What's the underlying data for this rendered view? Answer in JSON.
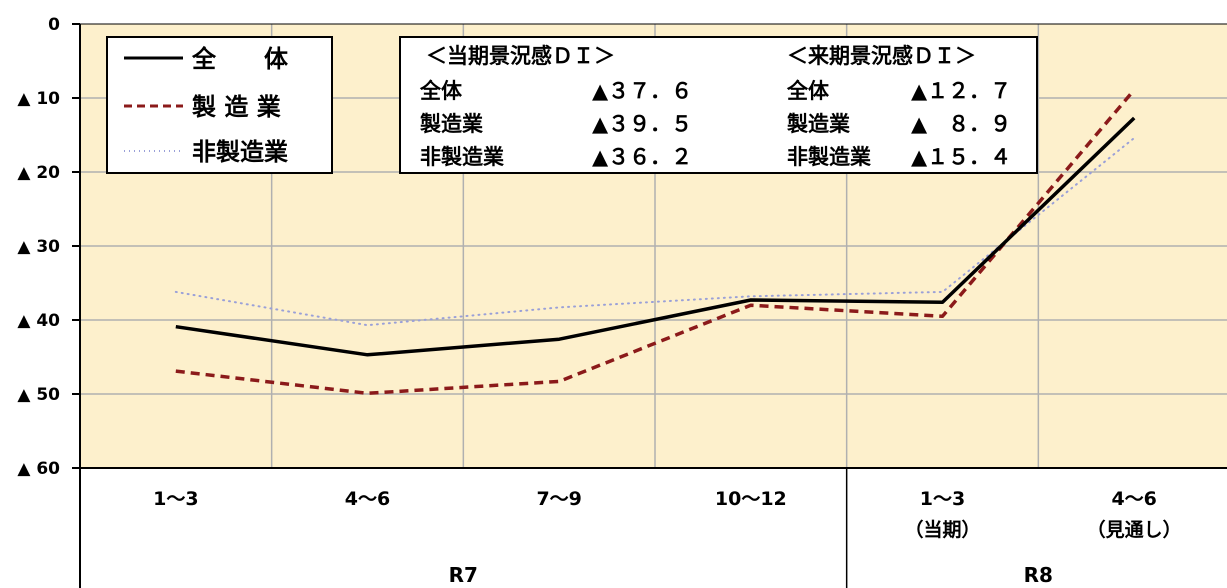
{
  "chart_data": {
    "type": "line",
    "categories": [
      "1～3",
      "4～6",
      "7～9",
      "10～12",
      "1～3",
      "4～6"
    ],
    "category_sublabels": [
      "",
      "",
      "",
      "",
      "（当期）",
      "（見通し）"
    ],
    "groups": [
      {
        "label": "R7",
        "span": [
          0,
          3
        ]
      },
      {
        "label": "R8",
        "span": [
          4,
          5
        ]
      }
    ],
    "y_ticks": [
      {
        "value": 0,
        "label": "0"
      },
      {
        "value": -10,
        "label": "▲ 10"
      },
      {
        "value": -20,
        "label": "▲ 20"
      },
      {
        "value": -30,
        "label": "▲ 30"
      },
      {
        "value": -40,
        "label": "▲ 40"
      },
      {
        "value": -50,
        "label": "▲ 50"
      },
      {
        "value": -60,
        "label": "▲ 60"
      }
    ],
    "ylim": [
      -60,
      0
    ],
    "grid": true,
    "plot_background": "#fdf0cc",
    "series": [
      {
        "name": "全　体",
        "legend_label": "全　　体",
        "color": "#000000",
        "style": "solid",
        "values": [
          -40.9,
          -44.7,
          -42.6,
          -37.3,
          -37.6,
          -12.7
        ]
      },
      {
        "name": "製造業",
        "legend_label": "製 造 業",
        "color": "#8b1a1a",
        "style": "dashed",
        "values": [
          -46.9,
          -49.9,
          -48.3,
          -38.0,
          -39.5,
          -8.9
        ]
      },
      {
        "name": "非製造業",
        "legend_label": "非製造業",
        "color": "#9aa0d8",
        "style": "dotted",
        "values": [
          -36.2,
          -40.7,
          -38.3,
          -36.8,
          -36.2,
          -15.4
        ]
      }
    ],
    "info_box": {
      "current_title": "＜当期景況感ＤＩ＞",
      "next_title": "＜来期景況感ＤＩ＞",
      "rows": [
        {
          "label": "全体",
          "current": "▲３７．６",
          "next_label": "全体",
          "next": "▲１２．７"
        },
        {
          "label": "製造業",
          "current": "▲３９．５",
          "next_label": "製造業",
          "next": "▲　８．９"
        },
        {
          "label": "非製造業",
          "current": "▲３６．２",
          "next_label": "非製造業",
          "next": "▲１５．４"
        }
      ]
    }
  }
}
